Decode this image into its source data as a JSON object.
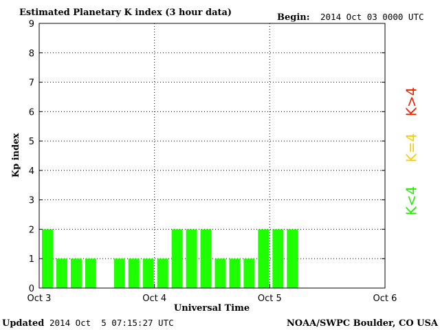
{
  "chart_data": {
    "type": "bar",
    "title": "Estimated Planetary K index (3 hour data)",
    "begin_label": "Begin:",
    "begin_value": "2014 Oct 03 0000 UTC",
    "ylabel": "Kp index",
    "xlabel": "Universal Time",
    "ylim": [
      0,
      9
    ],
    "yticks": [
      "0",
      "1",
      "2",
      "3",
      "4",
      "5",
      "6",
      "7",
      "8",
      "9"
    ],
    "xticks": [
      "Oct 3",
      "Oct 4",
      "Oct 5",
      "Oct 6"
    ],
    "grid": true,
    "interval_hours": 3,
    "values": [
      2,
      1,
      1,
      1,
      null,
      1,
      1,
      1,
      1,
      2,
      2,
      2,
      1,
      1,
      1,
      2,
      2,
      2
    ],
    "bar_color": "#1eff00",
    "legend": [
      {
        "label": "K<4",
        "color": "#22ee00"
      },
      {
        "label": "K=4",
        "color": "#ffcc00"
      },
      {
        "label": "K>4",
        "color": "#ee2200"
      }
    ]
  },
  "footer": {
    "updated_label": "Updated",
    "updated_value": "2014 Oct  5 07:15:27 UTC",
    "credit": "NOAA/SWPC Boulder, CO USA"
  }
}
